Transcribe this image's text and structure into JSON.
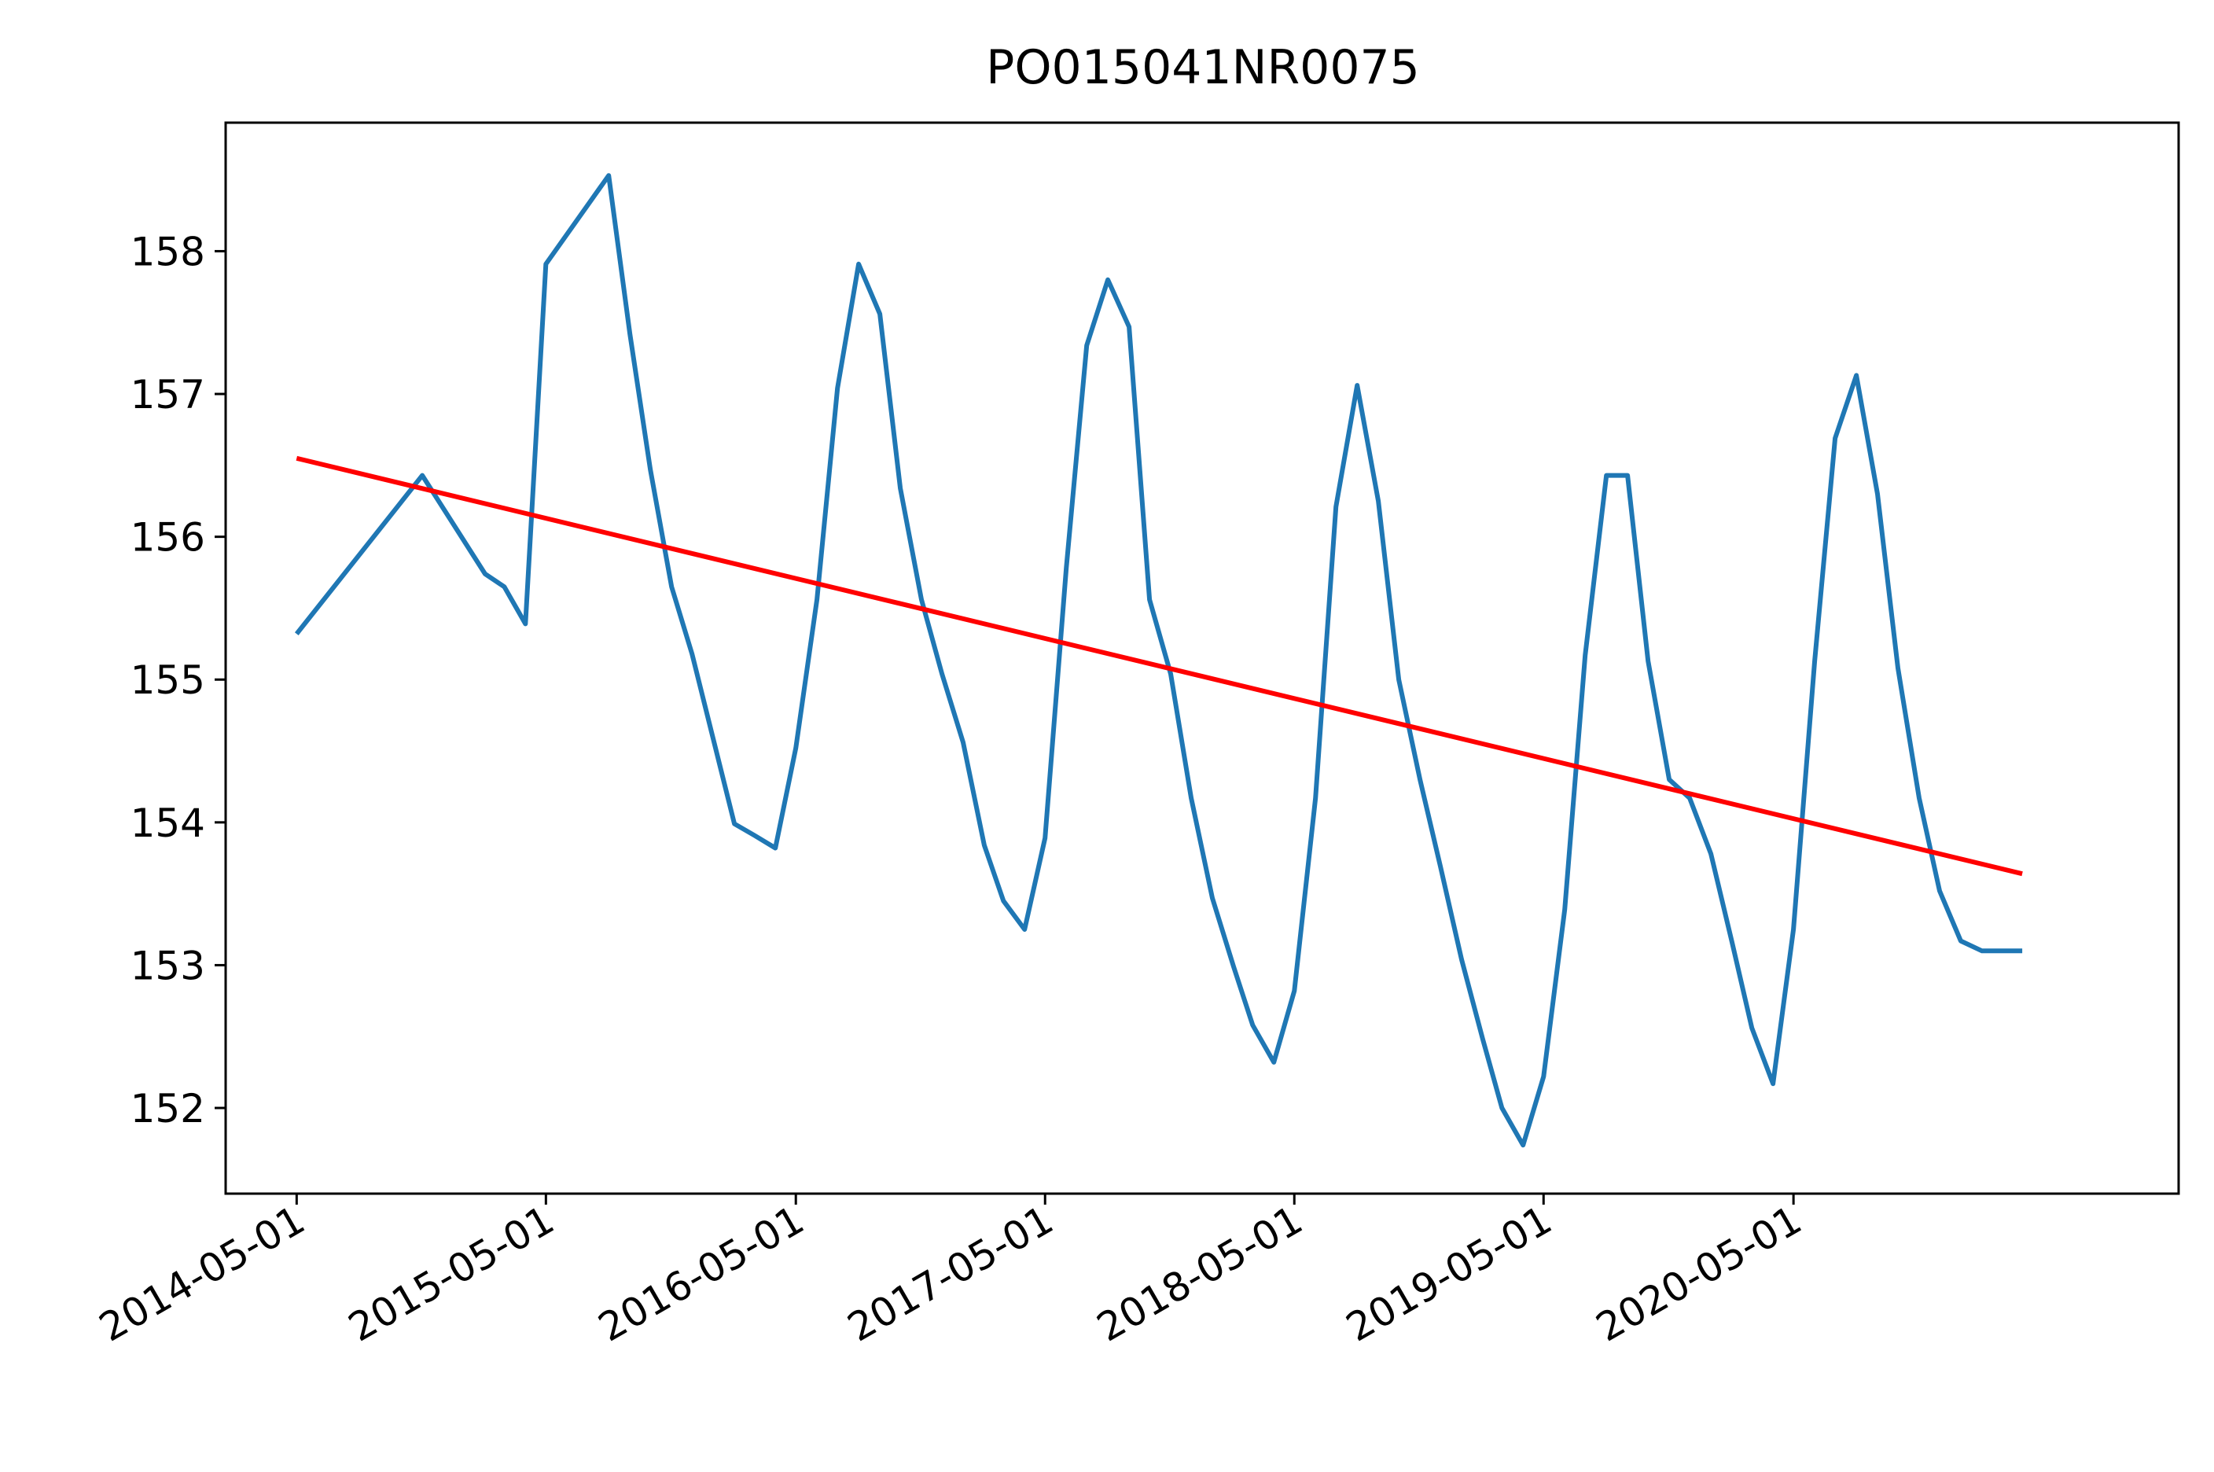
{
  "chart_data": {
    "type": "line",
    "title": "PO015041NR0075",
    "xlabel": "",
    "ylabel": "",
    "x_ticks": [
      "2014-05-01",
      "2015-05-01",
      "2016-05-01",
      "2017-05-01",
      "2018-05-01",
      "2019-05-01",
      "2020-05-01"
    ],
    "y_ticks": [
      152,
      153,
      154,
      155,
      156,
      157,
      158
    ],
    "xlim": [
      "2014-01-17",
      "2021-11-16"
    ],
    "ylim": [
      151.4,
      158.9
    ],
    "grid": false,
    "legend": "none",
    "series": [
      {
        "color": "#1f77b4",
        "points": [
          [
            "2014-05-01",
            155.32
          ],
          [
            "2014-11-01",
            156.43
          ],
          [
            "2015-02-01",
            155.74
          ],
          [
            "2015-03-01",
            155.65
          ],
          [
            "2015-04-01",
            155.39
          ],
          [
            "2015-05-01",
            157.91
          ],
          [
            "2015-08-01",
            158.53
          ],
          [
            "2015-09-01",
            157.42
          ],
          [
            "2015-10-01",
            156.47
          ],
          [
            "2015-11-01",
            155.65
          ],
          [
            "2015-12-01",
            155.18
          ],
          [
            "2016-02-01",
            153.99
          ],
          [
            "2016-03-01",
            153.91
          ],
          [
            "2016-04-01",
            153.82
          ],
          [
            "2016-05-01",
            154.52
          ],
          [
            "2016-06-01",
            155.56
          ],
          [
            "2016-07-01",
            157.04
          ],
          [
            "2016-08-01",
            157.91
          ],
          [
            "2016-09-01",
            157.56
          ],
          [
            "2016-10-01",
            156.34
          ],
          [
            "2016-11-01",
            155.56
          ],
          [
            "2016-12-01",
            155.04
          ],
          [
            "2017-01-01",
            154.56
          ],
          [
            "2017-02-01",
            153.84
          ],
          [
            "2017-03-01",
            153.45
          ],
          [
            "2017-04-01",
            153.25
          ],
          [
            "2017-05-01",
            153.89
          ],
          [
            "2017-06-01",
            155.78
          ],
          [
            "2017-07-01",
            157.34
          ],
          [
            "2017-08-01",
            157.8
          ],
          [
            "2017-09-01",
            157.47
          ],
          [
            "2017-10-01",
            155.56
          ],
          [
            "2017-11-01",
            155.04
          ],
          [
            "2017-12-01",
            154.17
          ],
          [
            "2018-01-01",
            153.47
          ],
          [
            "2018-02-01",
            152.99
          ],
          [
            "2018-03-01",
            152.58
          ],
          [
            "2018-04-01",
            152.32
          ],
          [
            "2018-05-01",
            152.82
          ],
          [
            "2018-06-01",
            154.17
          ],
          [
            "2018-07-01",
            156.21
          ],
          [
            "2018-08-01",
            157.06
          ],
          [
            "2018-09-01",
            156.25
          ],
          [
            "2018-10-01",
            155.0
          ],
          [
            "2018-11-01",
            154.3
          ],
          [
            "2018-12-01",
            153.69
          ],
          [
            "2019-01-01",
            153.04
          ],
          [
            "2019-02-01",
            152.48
          ],
          [
            "2019-03-01",
            152.0
          ],
          [
            "2019-04-01",
            151.74
          ],
          [
            "2019-05-01",
            152.22
          ],
          [
            "2019-06-01",
            153.39
          ],
          [
            "2019-07-01",
            155.17
          ],
          [
            "2019-08-01",
            156.43
          ],
          [
            "2019-09-01",
            156.43
          ],
          [
            "2019-10-01",
            155.13
          ],
          [
            "2019-11-01",
            154.3
          ],
          [
            "2019-12-01",
            154.17
          ],
          [
            "2020-01-01",
            153.78
          ],
          [
            "2020-02-01",
            153.16
          ],
          [
            "2020-03-01",
            152.56
          ],
          [
            "2020-04-01",
            152.17
          ],
          [
            "2020-05-01",
            153.25
          ],
          [
            "2020-06-01",
            155.13
          ],
          [
            "2020-07-01",
            156.69
          ],
          [
            "2020-08-01",
            157.13
          ],
          [
            "2020-09-01",
            156.3
          ],
          [
            "2020-10-01",
            155.08
          ],
          [
            "2020-11-01",
            154.17
          ],
          [
            "2020-12-01",
            153.52
          ],
          [
            "2021-01-01",
            153.17
          ],
          [
            "2021-02-01",
            153.1
          ],
          [
            "2021-04-01",
            153.1
          ]
        ]
      },
      {
        "color": "#ff0000",
        "points": [
          [
            "2014-05-01",
            156.55
          ],
          [
            "2021-04-01",
            153.64
          ]
        ]
      }
    ]
  }
}
